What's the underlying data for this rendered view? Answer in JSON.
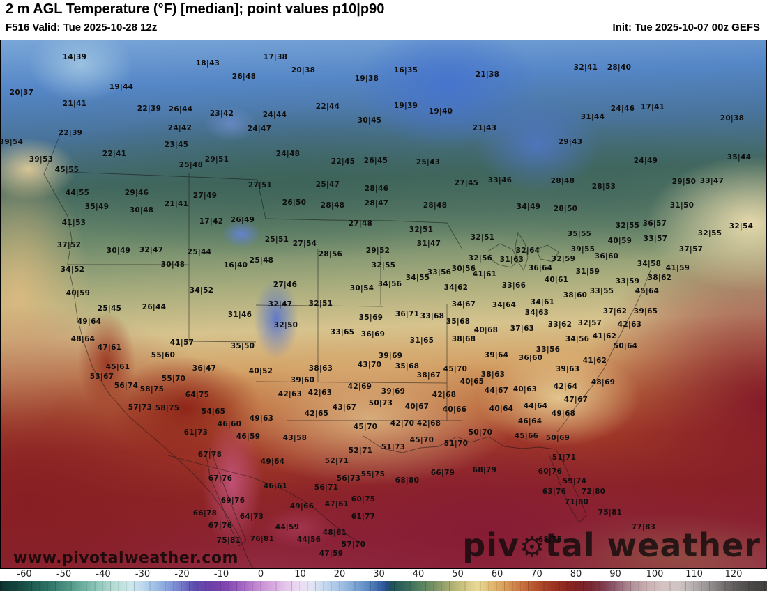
{
  "header": {
    "title": "2 m AGL Temperature (°F) [median]; point values p10|p90",
    "valid": "F516 Valid: Tue 2025-10-28 12z",
    "init": "Init: Tue 2025-10-07 00z GEFS"
  },
  "watermarks": {
    "url": "www.pivotalweather.com",
    "brand_pre": "piv",
    "gear": "⚙",
    "brand_post": "tal weather"
  },
  "colorbar": {
    "ticks": [
      -60,
      -50,
      -40,
      -30,
      -20,
      -10,
      0,
      10,
      20,
      30,
      40,
      50,
      60,
      70,
      80,
      90,
      100,
      110,
      120
    ],
    "stops": [
      [
        -66,
        "#0d322f"
      ],
      [
        -60,
        "#175046"
      ],
      [
        -54,
        "#2f7265"
      ],
      [
        -48,
        "#549b8b"
      ],
      [
        -42,
        "#8ac4b8"
      ],
      [
        -37,
        "#b7dcd6"
      ],
      [
        -33,
        "#cde8ea"
      ],
      [
        -30,
        "#bdd8ee"
      ],
      [
        -26,
        "#97b8e2"
      ],
      [
        -23,
        "#829cd8"
      ],
      [
        -20,
        "#7478c8"
      ],
      [
        -17,
        "#5d4fae"
      ],
      [
        -13,
        "#6b40a6"
      ],
      [
        -9,
        "#7f45b0"
      ],
      [
        -5,
        "#a164c2"
      ],
      [
        -1,
        "#c489d3"
      ],
      [
        2,
        "#d2a1da"
      ],
      [
        6,
        "#e3c3ea"
      ],
      [
        10,
        "#eddcf4"
      ],
      [
        13,
        "#e1e5f3"
      ],
      [
        16,
        "#c7d9ef"
      ],
      [
        20,
        "#a5c3e5"
      ],
      [
        24,
        "#7ca5d3"
      ],
      [
        27,
        "#5d8bc3"
      ],
      [
        30,
        "#3b67a9"
      ],
      [
        32,
        "#274f8f"
      ],
      [
        33,
        "#1e505a"
      ],
      [
        36,
        "#30625a"
      ],
      [
        40,
        "#507f60"
      ],
      [
        44,
        "#799265"
      ],
      [
        48,
        "#a9ac71"
      ],
      [
        52,
        "#d3c783"
      ],
      [
        55,
        "#e7da95"
      ],
      [
        58,
        "#e3bd75"
      ],
      [
        62,
        "#d99d59"
      ],
      [
        66,
        "#c97541"
      ],
      [
        70,
        "#b3512d"
      ],
      [
        74,
        "#9d3521"
      ],
      [
        78,
        "#89251f"
      ],
      [
        81,
        "#7d2127"
      ],
      [
        84,
        "#782934"
      ],
      [
        87,
        "#7f3d4d"
      ],
      [
        90,
        "#905d6f"
      ],
      [
        94,
        "#b18f97"
      ],
      [
        98,
        "#caafb1"
      ],
      [
        102,
        "#d5c2c1"
      ],
      [
        106,
        "#d0c5c5"
      ],
      [
        110,
        "#b5adad"
      ],
      [
        114,
        "#958f8f"
      ],
      [
        118,
        "#6f6b6b"
      ],
      [
        122,
        "#575353"
      ],
      [
        126,
        "#454242"
      ]
    ]
  },
  "points": [
    [
      "14|39",
      106,
      24
    ],
    [
      "18|43",
      297,
      33
    ],
    [
      "19|44",
      173,
      67
    ],
    [
      "20|37",
      30,
      75
    ],
    [
      "26|48",
      349,
      52
    ],
    [
      "21|41",
      106,
      91
    ],
    [
      "22|39",
      213,
      98
    ],
    [
      "26|44",
      258,
      99
    ],
    [
      "23|42",
      317,
      105
    ],
    [
      "24|42",
      257,
      126
    ],
    [
      "22|39",
      100,
      133
    ],
    [
      "39|54",
      15,
      146
    ],
    [
      "23|45",
      252,
      150
    ],
    [
      "22|41",
      163,
      163
    ],
    [
      "39|53",
      58,
      171
    ],
    [
      "25|48",
      273,
      179
    ],
    [
      "29|51",
      310,
      171
    ],
    [
      "45|55",
      95,
      186
    ],
    [
      "44|55",
      110,
      219
    ],
    [
      "29|46",
      195,
      219
    ],
    [
      "27|49",
      293,
      223
    ],
    [
      "35|49",
      138,
      239
    ],
    [
      "21|41",
      252,
      235
    ],
    [
      "30|48",
      202,
      244
    ],
    [
      "17|38",
      394,
      24
    ],
    [
      "20|38",
      434,
      43
    ],
    [
      "19|38",
      525,
      55
    ],
    [
      "16|35",
      581,
      43
    ],
    [
      "21|38",
      698,
      49
    ],
    [
      "22|44",
      469,
      95
    ],
    [
      "19|39",
      581,
      94
    ],
    [
      "19|40",
      631,
      102
    ],
    [
      "24|44",
      393,
      107
    ],
    [
      "24|47",
      371,
      127
    ],
    [
      "30|45",
      529,
      115
    ],
    [
      "21|43",
      694,
      126
    ],
    [
      "24|48",
      412,
      163
    ],
    [
      "22|45",
      491,
      174
    ],
    [
      "26|45",
      538,
      173
    ],
    [
      "25|43",
      613,
      175
    ],
    [
      "27|51",
      372,
      208
    ],
    [
      "25|47",
      469,
      207
    ],
    [
      "28|46",
      539,
      213
    ],
    [
      "27|45",
      668,
      205
    ],
    [
      "33|46",
      716,
      201
    ],
    [
      "26|50",
      421,
      233
    ],
    [
      "28|48",
      476,
      237
    ],
    [
      "28|47",
      539,
      234
    ],
    [
      "28|48",
      623,
      237
    ],
    [
      "32|41",
      839,
      39
    ],
    [
      "28|40",
      887,
      39
    ],
    [
      "24|46",
      892,
      98
    ],
    [
      "17|41",
      935,
      96
    ],
    [
      "31|44",
      849,
      110
    ],
    [
      "20|38",
      1049,
      112
    ],
    [
      "29|43",
      817,
      146
    ],
    [
      "24|49",
      925,
      173
    ],
    [
      "35|44",
      1059,
      168
    ],
    [
      "28|48",
      806,
      202
    ],
    [
      "28|53",
      865,
      210
    ],
    [
      "29|50",
      980,
      203
    ],
    [
      "33|47",
      1020,
      202
    ],
    [
      "31|50",
      977,
      237
    ],
    [
      "34|49",
      757,
      239
    ],
    [
      "28|50",
      810,
      242
    ],
    [
      "41|53",
      105,
      262
    ],
    [
      "17|42",
      302,
      260
    ],
    [
      "26|49",
      347,
      258
    ],
    [
      "37|52",
      98,
      294
    ],
    [
      "30|49",
      169,
      302
    ],
    [
      "32|47",
      216,
      301
    ],
    [
      "25|44",
      285,
      304
    ],
    [
      "34|52",
      103,
      329
    ],
    [
      "30|48",
      247,
      322
    ],
    [
      "16|40",
      337,
      323
    ],
    [
      "40|59",
      111,
      363
    ],
    [
      "34|52",
      288,
      359
    ],
    [
      "25|45",
      156,
      385
    ],
    [
      "26|44",
      220,
      383
    ],
    [
      "31|46",
      343,
      394
    ],
    [
      "49|64",
      127,
      404
    ],
    [
      "48|64",
      118,
      429
    ],
    [
      "47|61",
      156,
      441
    ],
    [
      "41|57",
      260,
      434
    ],
    [
      "35|50",
      347,
      439
    ],
    [
      "55|60",
      233,
      452
    ],
    [
      "45|61",
      168,
      469
    ],
    [
      "36|47",
      292,
      471
    ],
    [
      "53|67",
      145,
      483
    ],
    [
      "55|70",
      248,
      486
    ],
    [
      "56|74",
      180,
      496
    ],
    [
      "58|75",
      217,
      501
    ],
    [
      "27|48",
      516,
      263
    ],
    [
      "32|51",
      603,
      272
    ],
    [
      "25|51",
      396,
      286
    ],
    [
      "27|54",
      436,
      292
    ],
    [
      "31|47",
      614,
      292
    ],
    [
      "32|51",
      691,
      283
    ],
    [
      "28|56",
      473,
      307
    ],
    [
      "29|52",
      541,
      302
    ],
    [
      "25|48",
      374,
      316
    ],
    [
      "32|55",
      549,
      323
    ],
    [
      "32|56",
      688,
      313
    ],
    [
      "30|56",
      664,
      328
    ],
    [
      "33|56",
      629,
      333
    ],
    [
      "34|55",
      598,
      341
    ],
    [
      "41|61",
      694,
      336
    ],
    [
      "27|46",
      408,
      351
    ],
    [
      "34|56",
      558,
      350
    ],
    [
      "30|54",
      518,
      356
    ],
    [
      "34|62",
      653,
      355
    ],
    [
      "32|47",
      401,
      379
    ],
    [
      "32|51",
      459,
      378
    ],
    [
      "34|67",
      664,
      379
    ],
    [
      "36|71",
      583,
      393
    ],
    [
      "33|68",
      619,
      396
    ],
    [
      "35|69",
      531,
      398
    ],
    [
      "35|68",
      656,
      404
    ],
    [
      "32|50",
      409,
      409
    ],
    [
      "33|65",
      490,
      419
    ],
    [
      "36|69",
      534,
      422
    ],
    [
      "40|68",
      696,
      416
    ],
    [
      "31|65",
      604,
      431
    ],
    [
      "38|68",
      664,
      429
    ],
    [
      "39|64",
      711,
      452
    ],
    [
      "39|69",
      559,
      453
    ],
    [
      "43|70",
      529,
      466
    ],
    [
      "35|68",
      583,
      468
    ],
    [
      "38|63",
      459,
      471
    ],
    [
      "45|70",
      652,
      472
    ],
    [
      "40|52",
      373,
      475
    ],
    [
      "38|67",
      614,
      481
    ],
    [
      "39|60",
      433,
      488
    ],
    [
      "38|63",
      706,
      480
    ],
    [
      "40|65",
      676,
      490
    ],
    [
      "42|69",
      515,
      497
    ],
    [
      "42|63",
      415,
      508
    ],
    [
      "42|63",
      458,
      506
    ],
    [
      "39|69",
      563,
      504
    ],
    [
      "44|67",
      711,
      503
    ],
    [
      "32|55",
      899,
      266
    ],
    [
      "36|57",
      938,
      263
    ],
    [
      "32|54",
      1062,
      267
    ],
    [
      "35|55",
      830,
      278
    ],
    [
      "32|55",
      1017,
      277
    ],
    [
      "40|59",
      888,
      288
    ],
    [
      "33|57",
      939,
      285
    ],
    [
      "39|55",
      835,
      300
    ],
    [
      "37|57",
      990,
      300
    ],
    [
      "32|64",
      756,
      302
    ],
    [
      "32|59",
      807,
      314
    ],
    [
      "36|60",
      869,
      310
    ],
    [
      "31|63",
      733,
      315
    ],
    [
      "34|58",
      930,
      321
    ],
    [
      "36|64",
      774,
      327
    ],
    [
      "41|59",
      971,
      327
    ],
    [
      "31|59",
      842,
      332
    ],
    [
      "40|61",
      797,
      344
    ],
    [
      "38|62",
      945,
      341
    ],
    [
      "33|66",
      736,
      352
    ],
    [
      "33|59",
      899,
      346
    ],
    [
      "45|64",
      927,
      360
    ],
    [
      "33|55",
      862,
      360
    ],
    [
      "38|60",
      824,
      366
    ],
    [
      "34|61",
      777,
      376
    ],
    [
      "34|64",
      722,
      380
    ],
    [
      "34|63",
      769,
      391
    ],
    [
      "37|62",
      881,
      389
    ],
    [
      "39|65",
      925,
      389
    ],
    [
      "37|63",
      748,
      414
    ],
    [
      "33|62",
      802,
      408
    ],
    [
      "32|57",
      845,
      406
    ],
    [
      "42|63",
      902,
      408
    ],
    [
      "34|56",
      827,
      429
    ],
    [
      "41|62",
      866,
      425
    ],
    [
      "50|64",
      896,
      439
    ],
    [
      "33|56",
      785,
      444
    ],
    [
      "36|60",
      760,
      456
    ],
    [
      "41|62",
      852,
      460
    ],
    [
      "39|63",
      813,
      472
    ],
    [
      "42|64",
      810,
      497
    ],
    [
      "48|69",
      864,
      491
    ],
    [
      "40|63",
      752,
      501
    ],
    [
      "64|75",
      282,
      509
    ],
    [
      "57|73",
      200,
      527
    ],
    [
      "58|75",
      239,
      528
    ],
    [
      "54|65",
      305,
      533
    ],
    [
      "46|60",
      328,
      551
    ],
    [
      "61|73",
      280,
      563
    ],
    [
      "46|59",
      355,
      569
    ],
    [
      "67|78",
      300,
      595
    ],
    [
      "67|76",
      315,
      629
    ],
    [
      "69|76",
      333,
      661
    ],
    [
      "66|78",
      293,
      679
    ],
    [
      "64|73",
      360,
      684
    ],
    [
      "67|76",
      315,
      697
    ],
    [
      "75|81",
      327,
      718
    ],
    [
      "50|73",
      545,
      521
    ],
    [
      "43|67",
      493,
      527
    ],
    [
      "40|67",
      597,
      526
    ],
    [
      "42|68",
      636,
      509
    ],
    [
      "40|66",
      651,
      530
    ],
    [
      "42|65",
      453,
      536
    ],
    [
      "49|63",
      374,
      543
    ],
    [
      "45|70",
      523,
      555
    ],
    [
      "42|70",
      576,
      550
    ],
    [
      "42|68",
      614,
      550
    ],
    [
      "50|70",
      688,
      563
    ],
    [
      "43|58",
      422,
      571
    ],
    [
      "45|70",
      604,
      574
    ],
    [
      "51|73",
      563,
      584
    ],
    [
      "51|70",
      653,
      579
    ],
    [
      "52|71",
      516,
      589
    ],
    [
      "52|71",
      482,
      604
    ],
    [
      "49|64",
      390,
      605
    ],
    [
      "55|75",
      534,
      623
    ],
    [
      "66|79",
      634,
      621
    ],
    [
      "68|79",
      694,
      617
    ],
    [
      "56|73",
      499,
      629
    ],
    [
      "68|80",
      583,
      632
    ],
    [
      "46|61",
      394,
      640
    ],
    [
      "56|71",
      467,
      642
    ],
    [
      "60|75",
      520,
      659
    ],
    [
      "49|66",
      432,
      669
    ],
    [
      "47|61",
      482,
      666
    ],
    [
      "61|77",
      520,
      684
    ],
    [
      "44|59",
      411,
      699
    ],
    [
      "48|61",
      479,
      707
    ],
    [
      "76|81",
      375,
      716
    ],
    [
      "44|56",
      442,
      717
    ],
    [
      "57|70",
      506,
      724
    ],
    [
      "47|59",
      474,
      737
    ],
    [
      "47|67",
      825,
      516
    ],
    [
      "44|64",
      767,
      525
    ],
    [
      "49|68",
      807,
      536
    ],
    [
      "46|64",
      759,
      547
    ],
    [
      "40|64",
      718,
      529
    ],
    [
      "45|66",
      754,
      568
    ],
    [
      "50|69",
      799,
      571
    ],
    [
      "51|71",
      808,
      599
    ],
    [
      "60|76",
      788,
      619
    ],
    [
      "59|74",
      823,
      633
    ],
    [
      "63|76",
      794,
      648
    ],
    [
      "72|80",
      850,
      648
    ],
    [
      "71|80",
      826,
      663
    ],
    [
      "75|81",
      874,
      678
    ],
    [
      "77|83",
      922,
      699
    ],
    [
      "68|75",
      788,
      717
    ]
  ]
}
